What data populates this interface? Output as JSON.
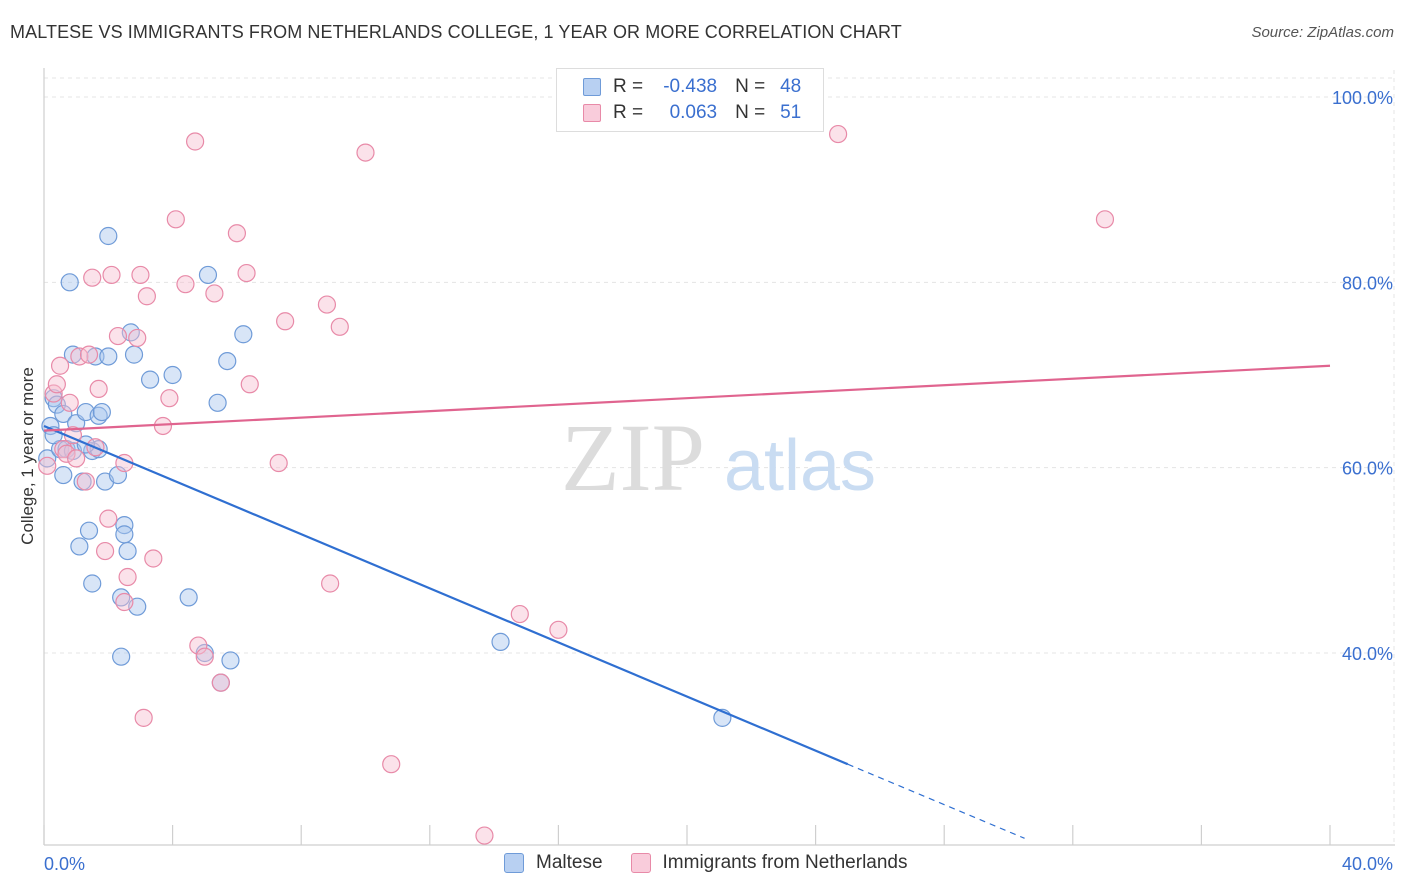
{
  "chart_data": {
    "type": "scatter",
    "title": "MALTESE VS IMMIGRANTS FROM NETHERLANDS COLLEGE, 1 YEAR OR MORE CORRELATION CHART",
    "source": "Source: ZipAtlas.com",
    "xlabel": "",
    "ylabel": "College, 1 year or more",
    "xlim": [
      0,
      40
    ],
    "ylim": [
      20,
      103
    ],
    "x_tick_labels": [
      "0.0%",
      "40.0%"
    ],
    "y_tick_labels": [
      "100.0%",
      "80.0%",
      "60.0%",
      "40.0%"
    ],
    "y_tick_values": [
      100,
      80,
      60,
      40
    ],
    "watermark": {
      "zip": "ZIP",
      "atlas": "atlas"
    },
    "legend": [
      {
        "name": "Maltese",
        "r_label": "R =",
        "r": "-0.438",
        "n_label": "N =",
        "n": "48",
        "color": "#a9c6ee",
        "stroke": "#6f9bd8"
      },
      {
        "name": "Immigrants from Netherlands",
        "r_label": "R =",
        "r": "0.063",
        "n_label": "N =",
        "n": "51",
        "color": "#f7bfd0",
        "stroke": "#e88aa8"
      }
    ],
    "trend_lines": [
      {
        "series": "Maltese",
        "x1": 0,
        "y1": 64.5,
        "x2": 25,
        "y2": 28,
        "dash_to_x": 30.5,
        "dash_to_y": 20,
        "color": "#2f6fd1"
      },
      {
        "series": "Immigrants from Netherlands",
        "x1": 0,
        "y1": 64.0,
        "x2": 40,
        "y2": 71.0,
        "color": "#e0648f"
      }
    ],
    "series": [
      {
        "name": "Maltese",
        "points": [
          [
            0.1,
            61.0
          ],
          [
            0.2,
            64.5
          ],
          [
            0.3,
            67.5
          ],
          [
            0.4,
            66.8
          ],
          [
            0.5,
            62.0
          ],
          [
            0.6,
            65.8
          ],
          [
            0.6,
            59.2
          ],
          [
            0.7,
            62.0
          ],
          [
            0.8,
            80.0
          ],
          [
            0.9,
            72.2
          ],
          [
            0.9,
            61.8
          ],
          [
            1.0,
            64.8
          ],
          [
            1.1,
            51.5
          ],
          [
            1.2,
            58.5
          ],
          [
            1.3,
            66.0
          ],
          [
            1.4,
            53.2
          ],
          [
            1.5,
            47.5
          ],
          [
            1.5,
            61.8
          ],
          [
            1.6,
            72.0
          ],
          [
            1.7,
            65.6
          ],
          [
            1.7,
            62.0
          ],
          [
            1.8,
            66.0
          ],
          [
            1.9,
            58.5
          ],
          [
            2.0,
            72.0
          ],
          [
            2.0,
            85.0
          ],
          [
            2.3,
            59.2
          ],
          [
            2.4,
            46.0
          ],
          [
            2.4,
            39.6
          ],
          [
            2.5,
            53.8
          ],
          [
            2.5,
            52.8
          ],
          [
            2.6,
            51.0
          ],
          [
            2.7,
            74.6
          ],
          [
            2.8,
            72.2
          ],
          [
            2.9,
            45.0
          ],
          [
            3.3,
            69.5
          ],
          [
            4.0,
            70.0
          ],
          [
            4.5,
            46.0
          ],
          [
            5.0,
            40.0
          ],
          [
            5.1,
            80.8
          ],
          [
            5.4,
            67.0
          ],
          [
            5.5,
            36.8
          ],
          [
            5.7,
            71.5
          ],
          [
            5.8,
            39.2
          ],
          [
            6.2,
            74.4
          ],
          [
            14.2,
            41.2
          ],
          [
            21.1,
            33.0
          ],
          [
            0.3,
            63.5
          ],
          [
            1.3,
            62.5
          ]
        ]
      },
      {
        "name": "Immigrants from Netherlands",
        "points": [
          [
            0.1,
            60.2
          ],
          [
            0.3,
            68.0
          ],
          [
            0.4,
            69.0
          ],
          [
            0.5,
            71.0
          ],
          [
            0.6,
            62.0
          ],
          [
            0.7,
            61.5
          ],
          [
            0.8,
            67.0
          ],
          [
            0.9,
            63.5
          ],
          [
            1.0,
            61.0
          ],
          [
            1.1,
            72.0
          ],
          [
            1.3,
            58.5
          ],
          [
            1.4,
            72.2
          ],
          [
            1.5,
            80.5
          ],
          [
            1.6,
            62.2
          ],
          [
            1.7,
            68.5
          ],
          [
            1.9,
            51.0
          ],
          [
            2.0,
            54.5
          ],
          [
            2.1,
            80.8
          ],
          [
            2.3,
            74.2
          ],
          [
            2.5,
            60.5
          ],
          [
            2.6,
            48.2
          ],
          [
            2.5,
            45.5
          ],
          [
            2.9,
            74.0
          ],
          [
            3.0,
            80.8
          ],
          [
            3.1,
            33.0
          ],
          [
            3.2,
            78.5
          ],
          [
            3.4,
            50.2
          ],
          [
            3.7,
            64.5
          ],
          [
            3.9,
            67.5
          ],
          [
            4.1,
            86.8
          ],
          [
            4.4,
            79.8
          ],
          [
            4.8,
            40.8
          ],
          [
            4.7,
            95.2
          ],
          [
            5.0,
            39.6
          ],
          [
            5.3,
            78.8
          ],
          [
            5.5,
            36.8
          ],
          [
            6.0,
            85.3
          ],
          [
            6.3,
            81.0
          ],
          [
            6.4,
            69.0
          ],
          [
            7.3,
            60.5
          ],
          [
            7.5,
            75.8
          ],
          [
            8.8,
            77.6
          ],
          [
            8.9,
            47.5
          ],
          [
            9.2,
            75.2
          ],
          [
            10.0,
            94.0
          ],
          [
            10.8,
            28.0
          ],
          [
            13.7,
            20.3
          ],
          [
            14.8,
            44.2
          ],
          [
            16.0,
            42.5
          ],
          [
            24.7,
            96.0
          ],
          [
            33.0,
            86.8
          ]
        ]
      }
    ]
  }
}
